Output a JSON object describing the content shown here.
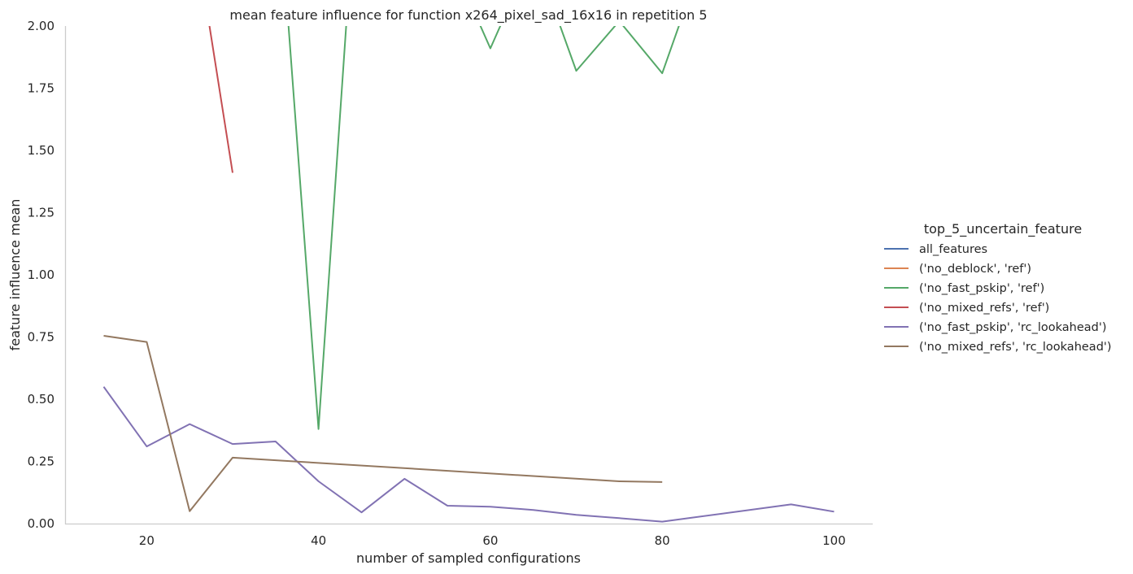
{
  "chart_data": {
    "type": "line",
    "title": "mean feature influence for function x264_pixel_sad_16x16 in repetition 5",
    "xlabel": "number of sampled configurations",
    "ylabel": "feature influence mean",
    "xlim": [
      10.5,
      104.5
    ],
    "ylim": [
      0,
      2
    ],
    "x_ticks": [
      20,
      40,
      60,
      80,
      100
    ],
    "x_tick_labels": [
      "20",
      "40",
      "60",
      "80",
      "100"
    ],
    "y_ticks": [
      0,
      0.25,
      0.5,
      0.75,
      1.0,
      1.25,
      1.5,
      1.75,
      2.0
    ],
    "y_tick_labels": [
      "0.00",
      "0.25",
      "0.50",
      "0.75",
      "1.00",
      "1.25",
      "1.50",
      "1.75",
      "2.00"
    ],
    "grid": false,
    "legend": {
      "title": "top_5_uncertain_feature",
      "placement": "right"
    },
    "series": [
      {
        "name": "all_features",
        "color": "#4c72b0",
        "points": []
      },
      {
        "name": "('no_deblock', 'ref')",
        "color": "#dd8452",
        "points": []
      },
      {
        "name": "('no_fast_pskip', 'ref')",
        "color": "#55a868",
        "points": [
          [
            35,
            2.7
          ],
          [
            40,
            0.38
          ],
          [
            45,
            2.9
          ],
          [
            55,
            2.3
          ],
          [
            60,
            1.91
          ],
          [
            65,
            2.3
          ],
          [
            70,
            1.82
          ],
          [
            75,
            2.02
          ],
          [
            80,
            1.81
          ],
          [
            85,
            2.3
          ]
        ]
      },
      {
        "name": "('no_mixed_refs', 'ref')",
        "color": "#c44e52",
        "points": [
          [
            20,
            3.6
          ],
          [
            30,
            1.41
          ]
        ]
      },
      {
        "name": "('no_fast_pskip', 'rc_lookahead')",
        "color": "#8172b3",
        "points": [
          [
            15,
            0.55
          ],
          [
            20,
            0.31
          ],
          [
            25,
            0.4
          ],
          [
            30,
            0.32
          ],
          [
            35,
            0.33
          ],
          [
            40,
            0.17
          ],
          [
            45,
            0.045
          ],
          [
            50,
            0.18
          ],
          [
            55,
            0.072
          ],
          [
            60,
            0.068
          ],
          [
            65,
            0.055
          ],
          [
            70,
            0.035
          ],
          [
            75,
            0.022
          ],
          [
            80,
            0.008
          ],
          [
            95,
            0.077
          ],
          [
            100,
            0.048
          ]
        ]
      },
      {
        "name": "('no_mixed_refs', 'rc_lookahead')",
        "color": "#937860",
        "points": [
          [
            15,
            0.755
          ],
          [
            20,
            0.73
          ],
          [
            25,
            0.05
          ],
          [
            30,
            0.265
          ],
          [
            75,
            0.17
          ],
          [
            80,
            0.167
          ]
        ]
      }
    ]
  }
}
